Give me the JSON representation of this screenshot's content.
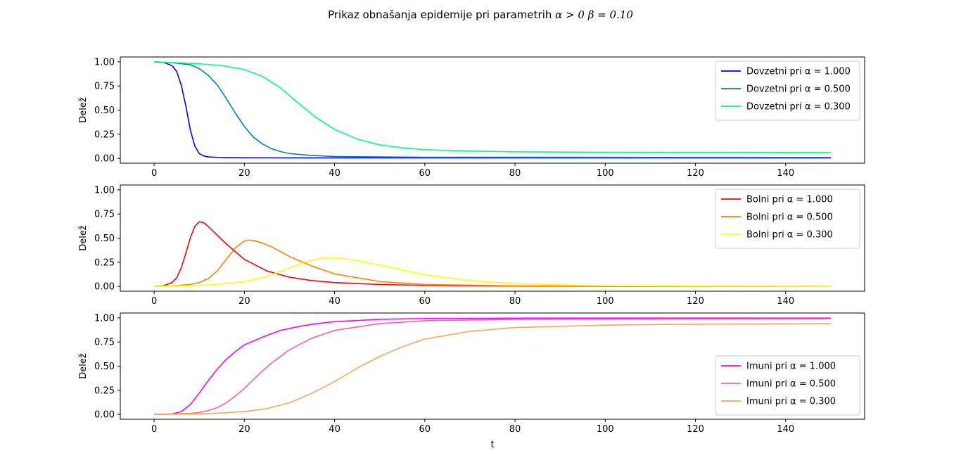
{
  "figure": {
    "title_prefix": "Prikaz obnašanja epidemije pri parametrih ",
    "title_math": "α > 0  β = 0.10"
  },
  "chart_data": [
    {
      "type": "line",
      "ylabel": "Delež",
      "xlabel": "",
      "xlim": [
        -7.5,
        157.5
      ],
      "ylim": [
        -0.05,
        1.05
      ],
      "xticks": [
        0,
        20,
        40,
        60,
        80,
        100,
        120,
        140
      ],
      "yticks": [
        0.0,
        0.25,
        0.5,
        0.75,
        1.0
      ],
      "ytick_labels": [
        "0.00",
        "0.25",
        "0.50",
        "0.75",
        "1.00"
      ],
      "legend_loc": "upper right",
      "series": [
        {
          "name": "Dovzetni pri α = 1.000",
          "color": "#0000ff",
          "x": [
            0,
            2,
            4,
            5,
            6,
            7,
            8,
            9,
            10,
            11,
            12,
            14,
            16,
            20,
            30,
            150
          ],
          "y": [
            1.0,
            0.995,
            0.96,
            0.9,
            0.76,
            0.55,
            0.3,
            0.13,
            0.05,
            0.025,
            0.015,
            0.01,
            0.008,
            0.006,
            0.005,
            0.005
          ]
        },
        {
          "name": "Dovzetni pri α = 0.500",
          "color": "#0080c0",
          "x": [
            0,
            4,
            8,
            10,
            12,
            14,
            16,
            18,
            20,
            22,
            24,
            26,
            28,
            30,
            35,
            40,
            50,
            60,
            150
          ],
          "y": [
            1.0,
            0.99,
            0.97,
            0.93,
            0.86,
            0.76,
            0.62,
            0.47,
            0.33,
            0.22,
            0.15,
            0.1,
            0.07,
            0.05,
            0.03,
            0.02,
            0.015,
            0.012,
            0.01
          ]
        },
        {
          "name": "Dovzetni pri α = 0.300",
          "color": "#00ff80",
          "x": [
            0,
            10,
            15,
            20,
            24,
            28,
            32,
            36,
            40,
            45,
            50,
            55,
            60,
            70,
            80,
            100,
            150
          ],
          "y": [
            1.0,
            0.98,
            0.96,
            0.92,
            0.85,
            0.73,
            0.57,
            0.42,
            0.3,
            0.2,
            0.14,
            0.11,
            0.09,
            0.075,
            0.068,
            0.063,
            0.06
          ]
        }
      ]
    },
    {
      "type": "line",
      "ylabel": "Delež",
      "xlabel": "",
      "xlim": [
        -7.5,
        157.5
      ],
      "ylim": [
        -0.05,
        1.05
      ],
      "xticks": [
        0,
        20,
        40,
        60,
        80,
        100,
        120,
        140
      ],
      "yticks": [
        0.0,
        0.25,
        0.5,
        0.75,
        1.0
      ],
      "ytick_labels": [
        "0.00",
        "0.25",
        "0.50",
        "0.75",
        "1.00"
      ],
      "legend_loc": "upper right",
      "series": [
        {
          "name": "Bolni pri α = 1.000",
          "color": "#ff0000",
          "x": [
            0,
            2,
            4,
            5,
            6,
            7,
            8,
            9,
            10,
            11,
            12,
            14,
            16,
            18,
            20,
            25,
            30,
            35,
            40,
            50,
            60,
            80,
            100,
            150
          ],
          "y": [
            0.0,
            0.005,
            0.04,
            0.09,
            0.19,
            0.34,
            0.5,
            0.62,
            0.67,
            0.66,
            0.62,
            0.53,
            0.44,
            0.36,
            0.28,
            0.16,
            0.095,
            0.06,
            0.04,
            0.02,
            0.01,
            0.003,
            0.001,
            0.0
          ]
        },
        {
          "name": "Bolni pri α = 0.500",
          "color": "#ff8000",
          "x": [
            0,
            4,
            8,
            10,
            12,
            14,
            16,
            18,
            20,
            21,
            22,
            24,
            26,
            28,
            30,
            35,
            40,
            50,
            60,
            80,
            100,
            150
          ],
          "y": [
            0.0,
            0.005,
            0.02,
            0.04,
            0.08,
            0.16,
            0.28,
            0.4,
            0.47,
            0.48,
            0.475,
            0.45,
            0.41,
            0.36,
            0.31,
            0.21,
            0.13,
            0.05,
            0.02,
            0.005,
            0.001,
            0.0
          ]
        },
        {
          "name": "Bolni pri α = 0.300",
          "color": "#ffff00",
          "x": [
            0,
            10,
            15,
            20,
            25,
            30,
            34,
            38,
            42,
            46,
            50,
            55,
            60,
            70,
            80,
            90,
            100,
            120,
            150
          ],
          "y": [
            0.0,
            0.01,
            0.025,
            0.05,
            0.1,
            0.19,
            0.26,
            0.3,
            0.29,
            0.26,
            0.22,
            0.17,
            0.12,
            0.06,
            0.03,
            0.015,
            0.007,
            0.002,
            0.0
          ]
        }
      ]
    },
    {
      "type": "line",
      "ylabel": "Delež",
      "xlabel": "t",
      "xlim": [
        -7.5,
        157.5
      ],
      "ylim": [
        -0.05,
        1.05
      ],
      "xticks": [
        0,
        20,
        40,
        60,
        80,
        100,
        120,
        140
      ],
      "yticks": [
        0.0,
        0.25,
        0.5,
        0.75,
        1.0
      ],
      "ytick_labels": [
        "0.00",
        "0.25",
        "0.50",
        "0.75",
        "1.00"
      ],
      "legend_loc": "lower right",
      "series": [
        {
          "name": "Imuni pri α = 1.000",
          "color": "#ff00ff",
          "x": [
            0,
            4,
            6,
            8,
            10,
            12,
            14,
            16,
            18,
            20,
            24,
            28,
            32,
            36,
            40,
            50,
            60,
            80,
            150
          ],
          "y": [
            0.0,
            0.005,
            0.03,
            0.1,
            0.22,
            0.35,
            0.47,
            0.57,
            0.65,
            0.72,
            0.8,
            0.87,
            0.91,
            0.94,
            0.96,
            0.985,
            0.993,
            0.997,
            0.998
          ]
        },
        {
          "name": "Imuni pri α = 0.500",
          "color": "#ff5caa",
          "x": [
            0,
            8,
            10,
            12,
            14,
            16,
            18,
            20,
            22,
            24,
            26,
            28,
            30,
            35,
            40,
            50,
            60,
            80,
            150
          ],
          "y": [
            0.0,
            0.01,
            0.02,
            0.04,
            0.07,
            0.12,
            0.19,
            0.27,
            0.36,
            0.45,
            0.53,
            0.6,
            0.67,
            0.79,
            0.87,
            0.94,
            0.97,
            0.985,
            0.99
          ]
        },
        {
          "name": "Imuni pri α = 0.300",
          "color": "#ffa556",
          "x": [
            0,
            10,
            15,
            20,
            25,
            30,
            35,
            40,
            45,
            50,
            55,
            60,
            70,
            80,
            100,
            120,
            150
          ],
          "y": [
            0.0,
            0.005,
            0.015,
            0.03,
            0.06,
            0.12,
            0.22,
            0.34,
            0.48,
            0.6,
            0.7,
            0.78,
            0.86,
            0.9,
            0.925,
            0.935,
            0.94
          ]
        }
      ]
    }
  ]
}
